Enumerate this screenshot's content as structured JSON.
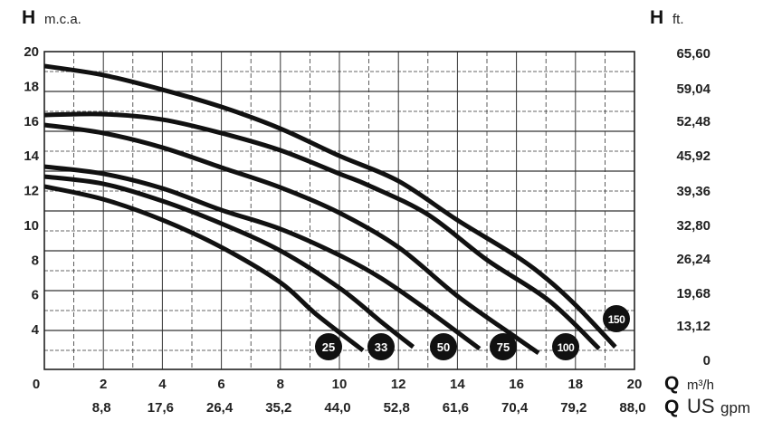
{
  "chart_data": {
    "type": "line",
    "title": "",
    "y_axis_left": {
      "symbol": "H",
      "unit": "m.c.a.",
      "ticks": [
        "20",
        "18",
        "16",
        "14",
        "12",
        "10",
        "8",
        "6",
        "4"
      ],
      "range": [
        0,
        20
      ]
    },
    "y_axis_right": {
      "symbol": "H",
      "unit": "ft.",
      "ticks": [
        "65,60",
        "59,04",
        "52,48",
        "45,92",
        "39,36",
        "32,80",
        "26,24",
        "19,68",
        "13,12",
        "0"
      ]
    },
    "x_axis_primary": {
      "symbol": "Q",
      "unit": "m³/h",
      "ticks": [
        "0",
        "2",
        "4",
        "6",
        "8",
        "10",
        "12",
        "14",
        "16",
        "18",
        "20"
      ],
      "range": [
        0,
        20
      ]
    },
    "x_axis_secondary": {
      "symbol": "Q",
      "unit_main": "US",
      "unit_sub": "gpm",
      "ticks": [
        "8,8",
        "17,6",
        "26,4",
        "35,2",
        "44,0",
        "52,8",
        "61,6",
        "70,4",
        "79,2",
        "88,0"
      ]
    },
    "grid": true,
    "series": [
      {
        "name": "25",
        "points": [
          [
            0,
            12.24
          ],
          [
            2,
            11.5
          ],
          [
            4,
            10.31
          ],
          [
            6,
            8.74
          ],
          [
            8,
            6.71
          ],
          [
            9.2,
            4.9
          ],
          [
            10.8,
            2.8
          ]
        ]
      },
      {
        "name": "33",
        "points": [
          [
            0,
            12.81
          ],
          [
            2,
            12.39
          ],
          [
            4,
            11.4
          ],
          [
            6,
            10.1
          ],
          [
            8,
            8.54
          ],
          [
            10,
            6.4
          ],
          [
            11.4,
            4.47
          ],
          [
            12.5,
            3.0
          ]
        ]
      },
      {
        "name": "50",
        "points": [
          [
            0,
            13.38
          ],
          [
            2,
            12.97
          ],
          [
            4,
            12.13
          ],
          [
            6,
            10.88
          ],
          [
            8,
            9.79
          ],
          [
            10,
            8.28
          ],
          [
            11.4,
            6.97
          ],
          [
            13,
            5.1
          ],
          [
            14.75,
            2.9
          ]
        ]
      },
      {
        "name": "75",
        "points": [
          [
            0,
            15.78
          ],
          [
            2,
            15.31
          ],
          [
            4,
            14.48
          ],
          [
            6,
            13.33
          ],
          [
            8,
            12.18
          ],
          [
            10,
            10.72
          ],
          [
            12,
            8.74
          ],
          [
            14,
            5.93
          ],
          [
            16,
            3.53
          ],
          [
            16.75,
            2.65
          ]
        ]
      },
      {
        "name": "100",
        "points": [
          [
            0,
            16.35
          ],
          [
            2,
            16.4
          ],
          [
            4,
            16.09
          ],
          [
            6,
            15.31
          ],
          [
            8,
            14.32
          ],
          [
            10,
            12.97
          ],
          [
            11,
            12.29
          ],
          [
            13,
            10.62
          ],
          [
            15,
            8.01
          ],
          [
            17.1,
            5.67
          ],
          [
            18.8,
            2.9
          ]
        ]
      },
      {
        "name": "150",
        "points": [
          [
            0,
            19.17
          ],
          [
            2,
            18.65
          ],
          [
            4,
            17.81
          ],
          [
            6,
            16.82
          ],
          [
            8,
            15.57
          ],
          [
            10,
            14.0
          ],
          [
            12,
            12.55
          ],
          [
            14,
            10.3
          ],
          [
            16,
            8.22
          ],
          [
            17.1,
            6.82
          ],
          [
            18.1,
            5.25
          ],
          [
            19.35,
            3.0
          ]
        ]
      }
    ],
    "colors": {
      "curve": "#111111",
      "badge": "#111111",
      "badge_text": "#ffffff",
      "grid": "#333333"
    }
  }
}
